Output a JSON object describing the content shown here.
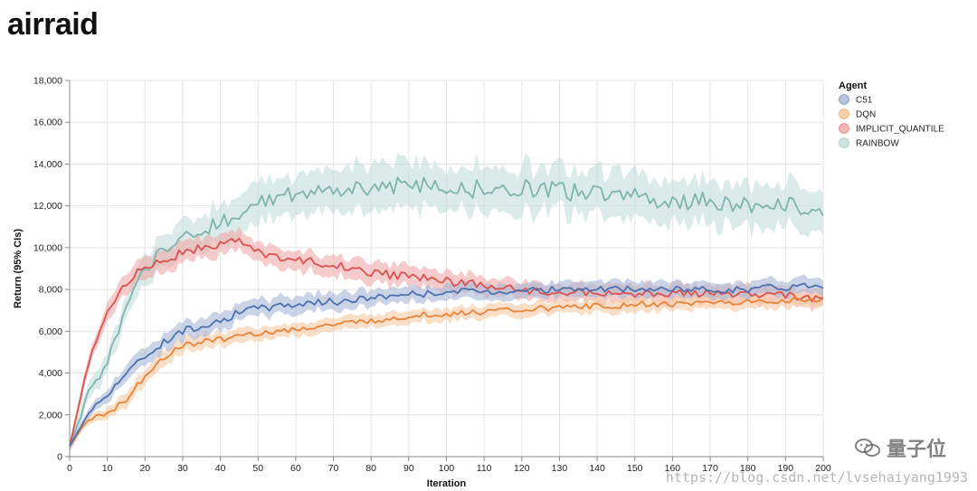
{
  "page": {
    "title": "airraid"
  },
  "watermark": {
    "brand": "量子位",
    "url": "https://blog.csdn.net/lvsehaiyang1993"
  },
  "chart_data": {
    "type": "line",
    "title": "airraid",
    "xlabel": "Iteration",
    "ylabel": "Return (95% CIs)",
    "xlim": [
      0,
      200
    ],
    "ylim": [
      0,
      18000
    ],
    "x_ticks": [
      0,
      10,
      20,
      30,
      40,
      50,
      60,
      70,
      80,
      90,
      100,
      110,
      120,
      130,
      140,
      150,
      160,
      170,
      180,
      190,
      200
    ],
    "y_ticks": [
      0,
      2000,
      4000,
      6000,
      8000,
      10000,
      12000,
      14000,
      16000,
      18000
    ],
    "y_tick_labels": [
      "0",
      "2,000",
      "4,000",
      "6,000",
      "8,000",
      "10,000",
      "12,000",
      "14,000",
      "16,000",
      "18,000"
    ],
    "grid": true,
    "legend": {
      "title": "Agent",
      "position": "right"
    },
    "x": [
      0,
      5,
      10,
      15,
      20,
      25,
      30,
      35,
      40,
      45,
      50,
      55,
      60,
      65,
      70,
      75,
      80,
      85,
      90,
      95,
      100,
      105,
      110,
      115,
      120,
      125,
      130,
      135,
      140,
      145,
      150,
      155,
      160,
      165,
      170,
      175,
      180,
      185,
      190,
      195,
      200
    ],
    "series": [
      {
        "name": "C51",
        "color": "#4c72b0",
        "band_color": "#a9b8d6",
        "values": [
          500,
          2100,
          3000,
          4000,
          4800,
          5500,
          6000,
          6300,
          6500,
          6900,
          7100,
          7200,
          7300,
          7400,
          7400,
          7500,
          7600,
          7700,
          7800,
          7800,
          7900,
          7900,
          7900,
          7900,
          8000,
          8000,
          8000,
          8000,
          8000,
          8000,
          8000,
          8000,
          8000,
          8000,
          8000,
          8000,
          8000,
          8100,
          8100,
          8200,
          8200
        ],
        "band": [
          200,
          200,
          300,
          350,
          400,
          400,
          400,
          400,
          400,
          400,
          400,
          400,
          400,
          400,
          400,
          400,
          350,
          350,
          350,
          350,
          350,
          350,
          350,
          350,
          350,
          350,
          350,
          350,
          350,
          350,
          350,
          350,
          350,
          350,
          350,
          350,
          350,
          350,
          350,
          350,
          350
        ]
      },
      {
        "name": "DQN",
        "color": "#e8833a",
        "band_color": "#f5c9a2",
        "values": [
          500,
          1800,
          2100,
          2700,
          3900,
          4800,
          5300,
          5500,
          5600,
          5800,
          5900,
          6000,
          6100,
          6200,
          6300,
          6400,
          6500,
          6600,
          6700,
          6800,
          6800,
          6900,
          6900,
          7000,
          7000,
          7100,
          7100,
          7200,
          7200,
          7200,
          7300,
          7300,
          7300,
          7300,
          7400,
          7400,
          7400,
          7400,
          7500,
          7500,
          7500
        ],
        "band": [
          200,
          200,
          250,
          300,
          350,
          350,
          350,
          350,
          300,
          300,
          300,
          300,
          300,
          300,
          300,
          300,
          300,
          300,
          300,
          300,
          300,
          300,
          300,
          300,
          300,
          300,
          300,
          300,
          300,
          300,
          300,
          300,
          300,
          300,
          300,
          300,
          300,
          300,
          300,
          300,
          300
        ]
      },
      {
        "name": "IMPLICIT_QUANTILE",
        "color": "#d9534f",
        "band_color": "#eeaaa8",
        "values": [
          500,
          4500,
          6800,
          8400,
          9100,
          9500,
          9700,
          10000,
          10200,
          10300,
          9800,
          9600,
          9400,
          9300,
          9200,
          9000,
          8800,
          8700,
          8600,
          8500,
          8400,
          8300,
          8200,
          8100,
          8000,
          7900,
          7900,
          7900,
          7800,
          7800,
          7800,
          7800,
          7800,
          7800,
          7800,
          7800,
          7800,
          7700,
          7700,
          7600,
          7600
        ],
        "band": [
          200,
          300,
          400,
          500,
          500,
          500,
          500,
          500,
          450,
          450,
          450,
          450,
          450,
          450,
          450,
          450,
          450,
          450,
          450,
          450,
          450,
          450,
          400,
          400,
          400,
          400,
          400,
          400,
          400,
          400,
          400,
          400,
          400,
          400,
          400,
          400,
          400,
          400,
          400,
          400,
          400
        ]
      },
      {
        "name": "RAINBOW",
        "color": "#7fb4ae",
        "band_color": "#c3dedb",
        "values": [
          500,
          3000,
          4500,
          7000,
          9000,
          10000,
          10500,
          10800,
          11200,
          11700,
          12100,
          12400,
          12500,
          12600,
          12700,
          12800,
          12900,
          12900,
          13000,
          12900,
          12900,
          12800,
          12800,
          12700,
          12800,
          12900,
          12700,
          12600,
          12500,
          12400,
          12400,
          12300,
          12300,
          12200,
          12200,
          12100,
          12100,
          12100,
          12000,
          12000,
          11800
        ],
        "band": [
          300,
          400,
          500,
          600,
          700,
          700,
          800,
          800,
          900,
          900,
          900,
          900,
          900,
          900,
          900,
          1000,
          1000,
          1000,
          1000,
          1000,
          1000,
          1000,
          1000,
          1000,
          1000,
          1000,
          1000,
          1000,
          1000,
          1000,
          1000,
          1000,
          1000,
          1000,
          1000,
          1000,
          1000,
          1000,
          1000,
          1000,
          1000
        ]
      }
    ]
  }
}
